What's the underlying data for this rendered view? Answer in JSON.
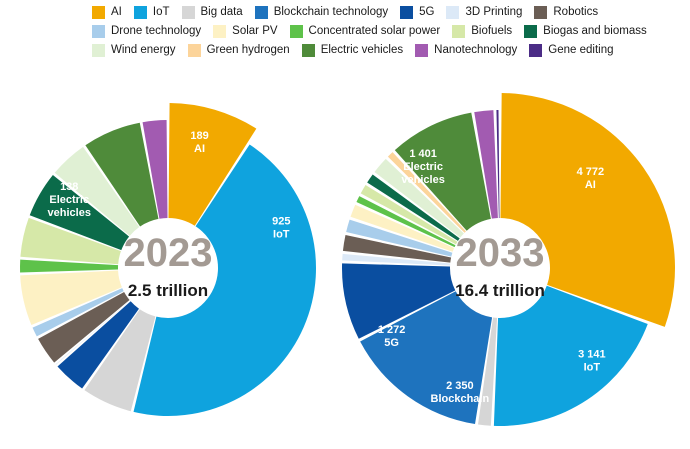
{
  "chart_data": {
    "type": "pie",
    "style": "donut",
    "categories": [
      "AI",
      "IoT",
      "Big data",
      "Blockchain technology",
      "5G",
      "3D Printing",
      "Robotics",
      "Drone technology",
      "Solar PV",
      "Concentrated solar power",
      "Biofuels",
      "Biogas and biomass",
      "Wind energy",
      "Green hydrogen",
      "Electric vehicles",
      "Nanotechnology",
      "Gene editing"
    ],
    "colors": [
      "#F2A900",
      "#0FA3DE",
      "#D6D6D6",
      "#1E73BE",
      "#0A4EA0",
      "#DCE9F7",
      "#6B5E55",
      "#A8CDEB",
      "#FDF1C4",
      "#5EC24A",
      "#D6E8A8",
      "#0B6B4A",
      "#E0F0D4",
      "#FCD49A",
      "#4F8B3A",
      "#A25BB1",
      "#4B2C86"
    ],
    "charts": [
      {
        "year": "2023",
        "total_label": "2.5 trillion",
        "values": [
          189,
          925,
          120,
          0,
          80,
          5,
          70,
          28,
          120,
          35,
          95,
          110,
          92,
          0,
          138,
          60,
          0
        ],
        "labels": [
          {
            "lines": [
              "189",
              "AI"
            ]
          },
          {
            "lines": [
              "925",
              "IoT"
            ]
          },
          {
            "lines": [
              "138",
              "Electric",
              "vehicles"
            ]
          }
        ]
      },
      {
        "year": "2033",
        "total_label": "16.4 trillion",
        "values": [
          4772,
          3141,
          250,
          2350,
          1272,
          150,
          300,
          250,
          250,
          150,
          200,
          200,
          320,
          150,
          1401,
          350,
          80
        ],
        "labels": [
          {
            "lines": [
              "4 772",
              "AI"
            ]
          },
          {
            "lines": [
              "3 141",
              "IoT"
            ]
          },
          {
            "lines": [
              "2 350",
              "Blockchain"
            ]
          },
          {
            "lines": [
              "1 272",
              "5G"
            ]
          },
          {
            "lines": [
              "1 401",
              "Electric",
              "vehicles"
            ]
          }
        ]
      }
    ]
  }
}
